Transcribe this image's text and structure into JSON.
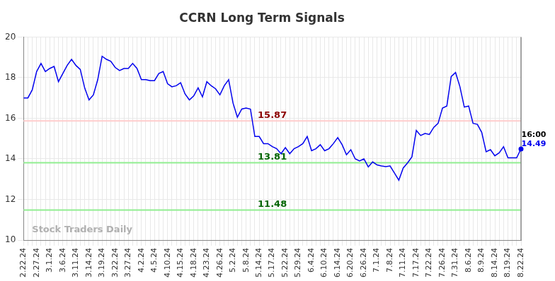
{
  "chart_data": {
    "type": "line",
    "title": "CCRN Long Term Signals",
    "watermark": "Stock Traders Daily",
    "categories": [
      "2.22.24",
      null,
      null,
      "2.27.24",
      null,
      null,
      "3.1.24",
      null,
      null,
      "3.6.24",
      null,
      null,
      "3.11.24",
      null,
      null,
      "3.14.24",
      null,
      null,
      "3.19.24",
      null,
      null,
      "3.22.24",
      null,
      null,
      "3.27.24",
      null,
      null,
      "4.2.24",
      null,
      null,
      "4.5.24",
      null,
      null,
      "4.10.24",
      null,
      null,
      "4.15.24",
      null,
      null,
      "4.18.24",
      null,
      null,
      "4.23.24",
      null,
      null,
      "4.26.24",
      null,
      null,
      "5.2.24",
      null,
      null,
      "5.8.24",
      null,
      null,
      "5.14.24",
      null,
      null,
      "5.17.24",
      null,
      null,
      "5.22.24",
      null,
      null,
      "5.29.24",
      null,
      null,
      "6.4.24",
      null,
      null,
      "6.10.24",
      null,
      null,
      "6.14.24",
      null,
      null,
      "6.20.24",
      null,
      null,
      "6.26.24",
      null,
      null,
      "7.1.24",
      null,
      null,
      "7.8.24",
      null,
      null,
      "7.11.24",
      null,
      null,
      "7.17.24",
      null,
      null,
      "7.22.24",
      null,
      null,
      "7.26.24",
      null,
      null,
      "7.31.24",
      null,
      null,
      "8.6.24",
      null,
      null,
      "8.9.24",
      null,
      null,
      "8.14.24",
      null,
      null,
      "8.19.24",
      null,
      null,
      "8.22.24"
    ],
    "values": [
      17.0,
      17.0,
      17.4,
      18.3,
      18.7,
      18.3,
      18.45,
      18.55,
      17.8,
      18.2,
      18.6,
      18.9,
      18.6,
      18.4,
      17.5,
      16.9,
      17.15,
      17.9,
      19.05,
      18.9,
      18.8,
      18.5,
      18.35,
      18.45,
      18.45,
      18.7,
      18.45,
      17.9,
      17.9,
      17.85,
      17.85,
      18.2,
      18.3,
      17.7,
      17.55,
      17.6,
      17.75,
      17.2,
      16.9,
      17.1,
      17.5,
      17.05,
      17.8,
      17.6,
      17.45,
      17.15,
      17.6,
      17.9,
      16.75,
      16.05,
      16.45,
      16.5,
      16.45,
      15.1,
      15.1,
      14.75,
      14.75,
      14.6,
      14.5,
      14.25,
      14.55,
      14.25,
      14.5,
      14.6,
      14.75,
      15.1,
      14.4,
      14.5,
      14.7,
      14.4,
      14.5,
      14.75,
      15.05,
      14.7,
      14.2,
      14.45,
      14.0,
      13.9,
      14.0,
      13.6,
      13.85,
      13.7,
      13.65,
      13.62,
      13.65,
      13.3,
      12.95,
      13.55,
      13.8,
      14.1,
      15.4,
      15.15,
      15.25,
      15.2,
      15.55,
      15.75,
      16.5,
      16.6,
      18.05,
      18.25,
      17.55,
      16.55,
      16.6,
      15.75,
      15.7,
      15.3,
      14.35,
      14.45,
      14.15,
      14.3,
      14.6,
      14.05,
      14.05,
      14.05,
      14.49
    ],
    "color": "#0000ee",
    "last_point": {
      "time": "16:00",
      "color": "#0000ee"
    },
    "levels": [
      {
        "value": 15.87,
        "color": "#ffcccc",
        "label_color": "#8b0000"
      },
      {
        "value": 13.81,
        "color": "#90ee90",
        "label_color": "#006400"
      },
      {
        "value": 11.48,
        "color": "#90ee90",
        "label_color": "#006400"
      }
    ],
    "ylim": [
      10,
      20
    ],
    "yticks": [
      10,
      12,
      14,
      16,
      18,
      20
    ],
    "grid": true
  }
}
